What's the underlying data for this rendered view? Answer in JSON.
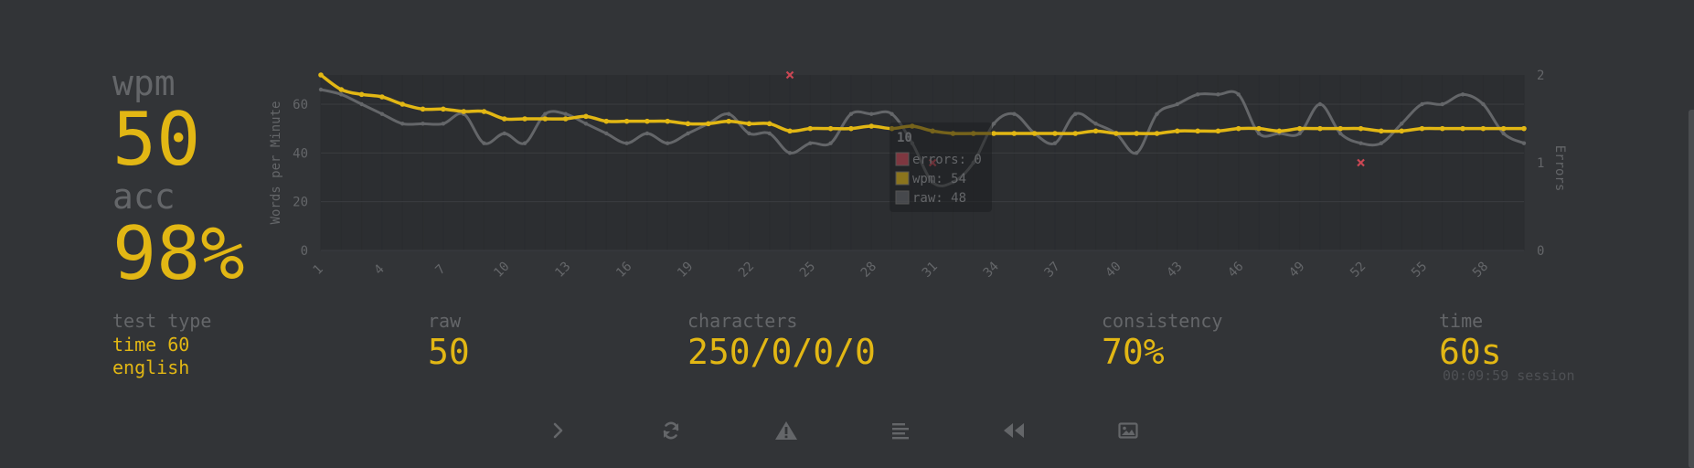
{
  "summary": {
    "wpm_label": "wpm",
    "wpm_value": "50",
    "acc_label": "acc",
    "acc_value": "98%"
  },
  "stats": {
    "test_type_label": "test type",
    "test_type_mode": "time 60",
    "test_type_language": "english",
    "raw_label": "raw",
    "raw_value": "50",
    "characters_label": "characters",
    "characters_value": "250/0/0/0",
    "consistency_label": "consistency",
    "consistency_value": "70%",
    "time_label": "time",
    "time_value": "60s",
    "session_text": "00:09:59 session"
  },
  "actions": [
    {
      "name": "next-test-button",
      "icon": "chevron-right-icon"
    },
    {
      "name": "restart-test-button",
      "icon": "refresh-icon"
    },
    {
      "name": "report-button",
      "icon": "warning-icon"
    },
    {
      "name": "show-words-history-button",
      "icon": "list-icon"
    },
    {
      "name": "replay-button",
      "icon": "rewind-icon"
    },
    {
      "name": "save-screenshot-button",
      "icon": "image-icon"
    }
  ],
  "colors": {
    "background": "#323437",
    "accent": "#e2b714",
    "sub": "#646669",
    "error": "#ca4754"
  },
  "chart_data": {
    "type": "line",
    "x": [
      1,
      2,
      3,
      4,
      5,
      6,
      7,
      8,
      9,
      10,
      11,
      12,
      13,
      14,
      15,
      16,
      17,
      18,
      19,
      20,
      21,
      22,
      23,
      24,
      25,
      26,
      27,
      28,
      29,
      30,
      31,
      32,
      33,
      34,
      35,
      36,
      37,
      38,
      39,
      40,
      41,
      42,
      43,
      44,
      45,
      46,
      47,
      48,
      49,
      50,
      51,
      52,
      53,
      54,
      55,
      56,
      57,
      58,
      59,
      60
    ],
    "xticks": [
      "1",
      "4",
      "7",
      "10",
      "13",
      "16",
      "19",
      "22",
      "25",
      "28",
      "31",
      "34",
      "37",
      "40",
      "43",
      "46",
      "49",
      "52",
      "55",
      "58"
    ],
    "ylabel": "Words per Minute",
    "y2label": "Errors",
    "ylim": [
      0,
      72
    ],
    "yticks": [
      "0",
      "20",
      "40",
      "60"
    ],
    "y2lim": [
      0,
      2
    ],
    "y2ticks": [
      "0",
      "1",
      "2"
    ],
    "grid": true,
    "series": [
      {
        "name": "wpm",
        "color": "#e2b714",
        "values": [
          72,
          66,
          64,
          63,
          60,
          58,
          58,
          57,
          57,
          54,
          54,
          54,
          54,
          55,
          53,
          53,
          53,
          53,
          52,
          52,
          53,
          52,
          52,
          49,
          50,
          50,
          50,
          51,
          50,
          51,
          49,
          48,
          48,
          48,
          48,
          48,
          48,
          48,
          49,
          48,
          48,
          48,
          49,
          49,
          49,
          50,
          50,
          49,
          50,
          50,
          50,
          50,
          49,
          49,
          50,
          50,
          50,
          50,
          50,
          50
        ]
      },
      {
        "name": "raw",
        "color": "#646669",
        "values": [
          66,
          64,
          60,
          56,
          52,
          52,
          52,
          56,
          44,
          48,
          44,
          56,
          56,
          52,
          48,
          44,
          48,
          44,
          48,
          52,
          56,
          48,
          48,
          40,
          44,
          44,
          56,
          56,
          56,
          44,
          28,
          28,
          36,
          52,
          56,
          48,
          44,
          56,
          52,
          48,
          40,
          56,
          60,
          64,
          64,
          64,
          48,
          48,
          48,
          60,
          48,
          44,
          44,
          52,
          60,
          60,
          64,
          60,
          48,
          44
        ]
      },
      {
        "name": "errors",
        "color": "#ca4754",
        "type": "scatter",
        "points": [
          {
            "x": 24,
            "y": 2
          },
          {
            "x": 31,
            "y": 1
          },
          {
            "x": 52,
            "y": 1
          }
        ]
      }
    ],
    "tooltip": {
      "title": "10",
      "rows": [
        "errors: 0",
        "wpm: 54",
        "raw: 48"
      ]
    }
  }
}
